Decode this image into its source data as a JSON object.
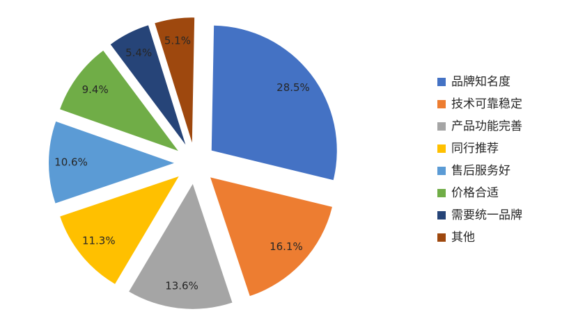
{
  "chart_data": {
    "type": "pie",
    "exploded": true,
    "show_percent_labels": true,
    "legend_position": "right",
    "series": [
      {
        "name": "品牌知名度",
        "value": 28.5,
        "label": "28.5%",
        "color": "#4472C4"
      },
      {
        "name": "技术可靠稳定",
        "value": 16.1,
        "label": "16.1%",
        "color": "#ED7D31"
      },
      {
        "name": "产品功能完善",
        "value": 13.6,
        "label": "13.6%",
        "color": "#A5A5A5"
      },
      {
        "name": "同行推荐",
        "value": 11.3,
        "label": "11.3%",
        "color": "#FFC000"
      },
      {
        "name": "售后服务好",
        "value": 10.6,
        "label": "10.6%",
        "color": "#5B9BD5"
      },
      {
        "name": "价格合适",
        "value": 9.4,
        "label": "9.4%",
        "color": "#70AD47"
      },
      {
        "name": "需要统一品牌",
        "value": 5.4,
        "label": "5.4%",
        "color": "#264478"
      },
      {
        "name": "其他",
        "value": 5.1,
        "label": "5.1%",
        "color": "#9E480E"
      }
    ]
  }
}
